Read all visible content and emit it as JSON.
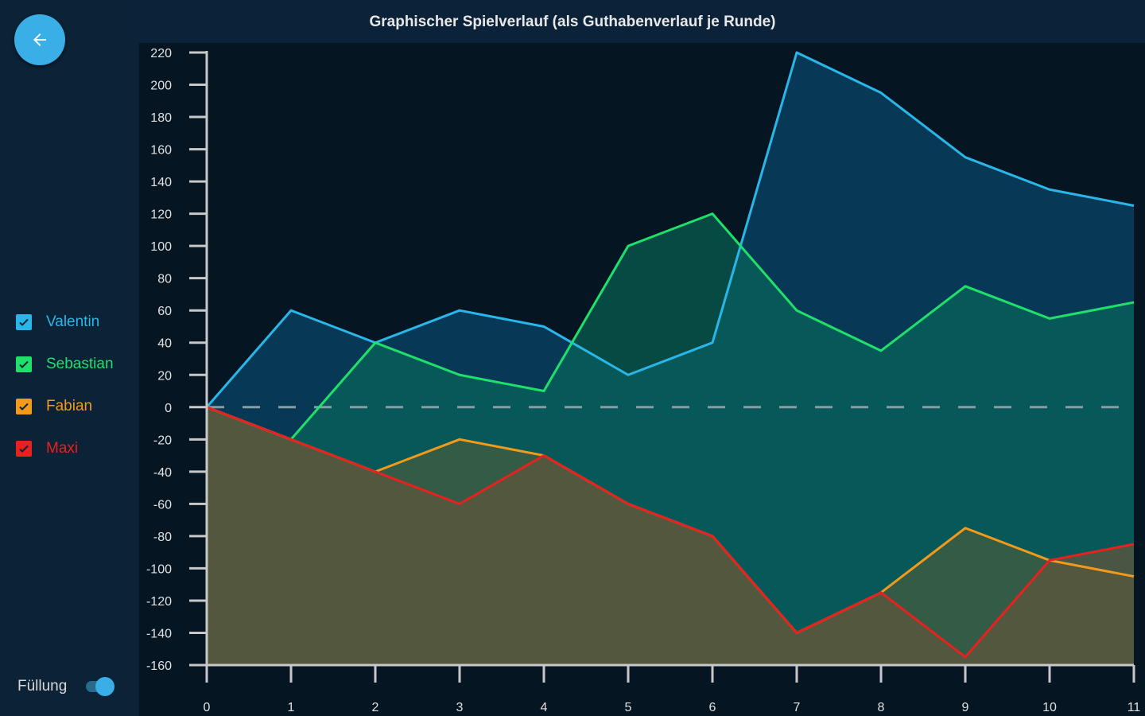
{
  "header": {
    "title": "Graphischer Spielverlauf (als Guthabenverlauf je Runde)"
  },
  "back_button": {
    "icon": "arrow-left-icon",
    "color": "#3aaee6"
  },
  "legend": [
    {
      "name": "Valentin",
      "color": "#29b6e8",
      "checked": true
    },
    {
      "name": "Sebastian",
      "color": "#1ee06a",
      "checked": true
    },
    {
      "name": "Fabian",
      "color": "#f29a1a",
      "checked": true
    },
    {
      "name": "Maxi",
      "color": "#e8211e",
      "checked": true
    }
  ],
  "fill_toggle": {
    "label": "Füllung",
    "on": true
  },
  "chart_data": {
    "type": "area",
    "title": "Graphischer Spielverlauf (als Guthabenverlauf je Runde)",
    "xlabel": "",
    "ylabel": "",
    "x": [
      0,
      1,
      2,
      3,
      4,
      5,
      6,
      7,
      8,
      9,
      10,
      11
    ],
    "xlim": [
      0,
      11
    ],
    "ylim": [
      -160,
      220
    ],
    "yticks": [
      220,
      200,
      180,
      160,
      140,
      120,
      100,
      80,
      60,
      40,
      20,
      0,
      -20,
      -40,
      -60,
      -80,
      -100,
      -120,
      -140,
      -160
    ],
    "xticks": [
      0,
      1,
      2,
      3,
      4,
      5,
      6,
      7,
      8,
      9,
      10,
      11
    ],
    "baseline_dashed": 0,
    "grid": false,
    "legend_position": "left",
    "series": [
      {
        "name": "Valentin",
        "color": "#29b6e8",
        "fill": "rgba(8,70,105,0.75)",
        "values": [
          0,
          60,
          40,
          60,
          50,
          20,
          40,
          220,
          195,
          155,
          135,
          125
        ]
      },
      {
        "name": "Sebastian",
        "color": "#1ee06a",
        "fill": "rgba(6,110,90,0.6)",
        "values": [
          0,
          -20,
          40,
          20,
          10,
          100,
          120,
          60,
          35,
          75,
          55,
          65
        ]
      },
      {
        "name": "Fabian",
        "color": "#f29a1a",
        "fill": "rgba(90,95,55,0.55)",
        "values": [
          0,
          -20,
          -40,
          -20,
          -30,
          -60,
          -80,
          -140,
          -115,
          -75,
          -95,
          -105
        ]
      },
      {
        "name": "Maxi",
        "color": "#e8211e",
        "fill": "rgba(95,85,60,0.75)",
        "values": [
          0,
          -20,
          -40,
          -60,
          -30,
          -60,
          -80,
          -140,
          -115,
          -155,
          -95,
          -85
        ]
      }
    ]
  }
}
